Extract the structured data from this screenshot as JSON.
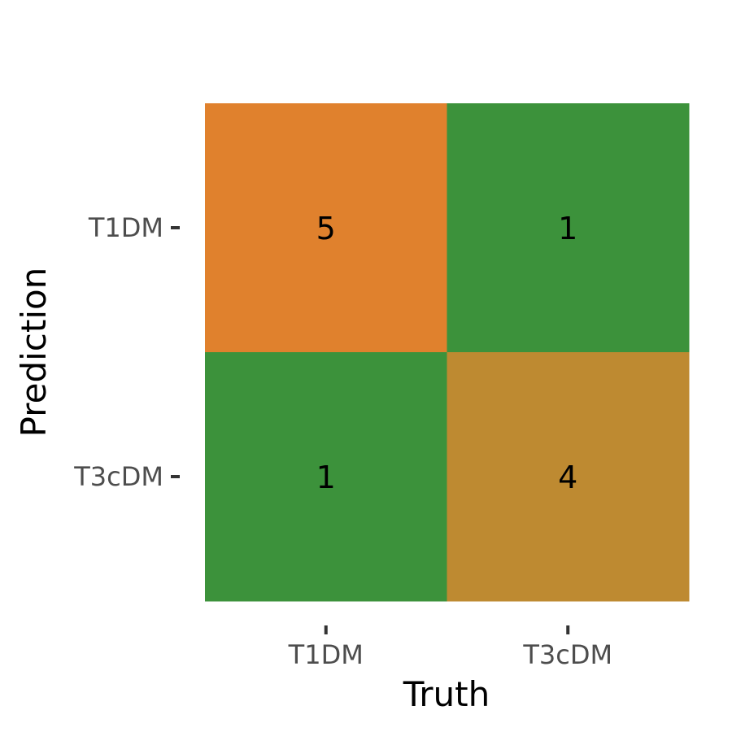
{
  "chart_data": {
    "type": "heatmap",
    "xlabel": "Truth",
    "ylabel": "Prediction",
    "x_categories": [
      "T1DM",
      "T3cDM"
    ],
    "y_categories": [
      "T1DM",
      "T3cDM"
    ],
    "cells": [
      {
        "x": "T1DM",
        "y": "T1DM",
        "value": 5,
        "color": "#E0812D"
      },
      {
        "x": "T3cDM",
        "y": "T1DM",
        "value": 1,
        "color": "#3C923B"
      },
      {
        "x": "T1DM",
        "y": "T3cDM",
        "value": 1,
        "color": "#3C923B"
      },
      {
        "x": "T3cDM",
        "y": "T3cDM",
        "value": 4,
        "color": "#BE8A31"
      }
    ]
  }
}
